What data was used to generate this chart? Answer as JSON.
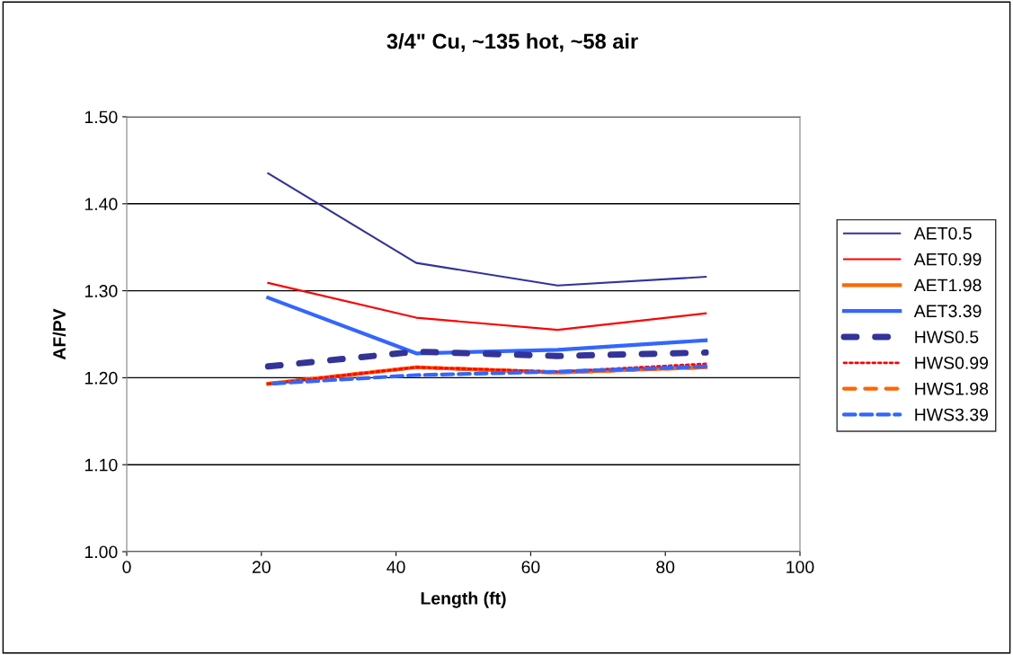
{
  "chart_data": {
    "type": "line",
    "title": "3/4\" Cu, ~135 hot, ~58 air",
    "xlabel": "Length (ft)",
    "ylabel": "AF/PV",
    "x": [
      21,
      43,
      64,
      86
    ],
    "series": [
      {
        "name": "AET0.5",
        "color": "#333399",
        "line_style": "solid",
        "values": [
          1.435,
          1.332,
          1.306,
          1.316
        ]
      },
      {
        "name": "AET0.99",
        "color": "#ff0000",
        "line_style": "solid",
        "values": [
          1.309,
          1.269,
          1.255,
          1.274
        ]
      },
      {
        "name": "AET1.98",
        "color": "#ff6600",
        "line_style": "solid",
        "values": [
          1.193,
          1.212,
          1.206,
          1.212
        ]
      },
      {
        "name": "AET3.39",
        "color": "#3366ff",
        "line_style": "solid",
        "values": [
          1.292,
          1.228,
          1.232,
          1.243
        ]
      },
      {
        "name": "HWS0.5",
        "color": "#333399",
        "line_style": "dashed",
        "values": [
          1.213,
          1.23,
          1.225,
          1.229
        ]
      },
      {
        "name": "HWS0.99",
        "color": "#ff0000",
        "line_style": "dotted",
        "values": [
          1.193,
          1.212,
          1.207,
          1.216
        ]
      },
      {
        "name": "HWS1.98",
        "color": "#ff6600",
        "line_style": "dashed",
        "values": [
          1.193,
          1.212,
          1.206,
          1.212
        ]
      },
      {
        "name": "HWS3.39",
        "color": "#3366ff",
        "line_style": "dashed",
        "values": [
          1.193,
          1.203,
          1.207,
          1.213
        ]
      }
    ],
    "xlim": [
      0,
      100
    ],
    "xticks": [
      0,
      20,
      40,
      60,
      80,
      100
    ],
    "ylim": [
      1.0,
      1.5
    ],
    "yticks": [
      {
        "value": 1.0,
        "label": "1.00"
      },
      {
        "value": 1.1,
        "label": "1.10"
      },
      {
        "value": 1.2,
        "label": "1.20"
      },
      {
        "value": 1.3,
        "label": "1.30"
      },
      {
        "value": 1.4,
        "label": "1.40"
      },
      {
        "value": 1.5,
        "label": "1.50"
      }
    ],
    "grid": "y",
    "legend": "right",
    "marker": "none"
  }
}
